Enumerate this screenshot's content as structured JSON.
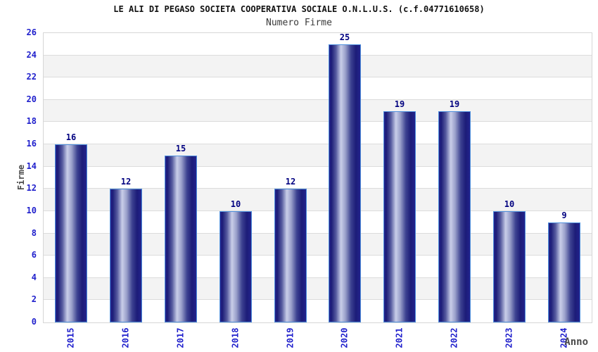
{
  "chart_data": {
    "type": "bar",
    "title": "LE ALI DI PEGASO SOCIETA COOPERATIVA SOCIALE O.N.L.U.S. (c.f.04771610658)",
    "subtitle": "Numero Firme",
    "xlabel": "Anno",
    "ylabel": "Firme",
    "categories": [
      "2015",
      "2016",
      "2017",
      "2018",
      "2019",
      "2020",
      "2021",
      "2022",
      "2023",
      "2024"
    ],
    "values": [
      16,
      12,
      15,
      10,
      12,
      25,
      19,
      19,
      10,
      9
    ],
    "ylim": [
      0,
      26
    ],
    "ytick_step": 2,
    "legend": "none",
    "grid": "alternating horizontal bands with light gray gridlines",
    "colors": {
      "bar_dark": "#1c1c78",
      "bar_edge_mid": "#23238c",
      "bar_shade1": "#565b9f",
      "bar_highlight": "#c9cee9",
      "bar_shade2": "#9ba1cb",
      "bar_shade3": "#3d4291",
      "bar_border": "#4e8fdd",
      "tick_label": "#2020cc",
      "value_label": "#000080",
      "axis_title": "#4a4a4a",
      "band_alt": "#f3f3f3",
      "band_main": "#ffffff",
      "gridline": "#dcdcdc",
      "plot_border": "#d6d6d6",
      "background": "#ffffff"
    }
  }
}
